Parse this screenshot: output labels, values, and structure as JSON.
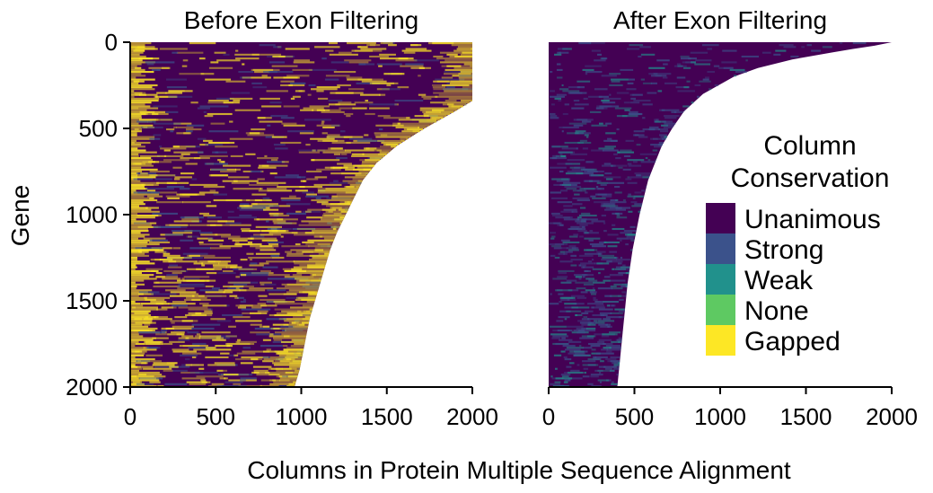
{
  "chart_data": {
    "type": "heatmap",
    "shared_xlabel": "Columns in Protein Multiple Sequence Alignment",
    "shared_ylabel": "Gene",
    "legend": {
      "title_lines": [
        "Column",
        "Conservation"
      ],
      "placement": "right-of-second-panel",
      "entries": [
        {
          "label": "Unanimous",
          "color": "#440154"
        },
        {
          "label": "Strong",
          "color": "#3b528b"
        },
        {
          "label": "Weak",
          "color": "#21918c"
        },
        {
          "label": "None",
          "color": "#5ec962"
        },
        {
          "label": "Gapped",
          "color": "#fde725"
        }
      ]
    },
    "panels": [
      {
        "title": "Before Exon Filtering",
        "xlim": [
          0,
          2000
        ],
        "ylim": [
          0,
          2000
        ],
        "x_ticks": [
          "0",
          "500",
          "1000",
          "1500",
          "2000"
        ],
        "y_ticks": [
          "0",
          "500",
          "1000",
          "1500",
          "2000"
        ],
        "y_tick_values": [
          0,
          500,
          1000,
          1500,
          2000
        ],
        "alignment_length_profile": {
          "gene": [
            0,
            100,
            200,
            300,
            340,
            400,
            500,
            600,
            700,
            800,
            900,
            1000,
            1100,
            1200,
            1300,
            1400,
            1500,
            1600,
            1700,
            1800,
            1900,
            2000
          ],
          "columns": [
            2000,
            2000,
            2000,
            2000,
            2000,
            1900,
            1720,
            1560,
            1440,
            1360,
            1310,
            1260,
            1210,
            1170,
            1140,
            1110,
            1080,
            1050,
            1030,
            1010,
            990,
            960
          ]
        },
        "dominant_classes": [
          "Unanimous",
          "Gapped"
        ]
      },
      {
        "title": "After Exon Filtering",
        "xlim": [
          0,
          2000
        ],
        "ylim": [
          0,
          2000
        ],
        "x_ticks": [
          "0",
          "500",
          "1000",
          "1500",
          "2000"
        ],
        "alignment_length_profile": {
          "gene": [
            0,
            20,
            40,
            60,
            100,
            150,
            200,
            300,
            400,
            500,
            600,
            800,
            1000,
            1200,
            1400,
            1600,
            1800,
            2000
          ],
          "columns": [
            2000,
            1900,
            1770,
            1650,
            1420,
            1220,
            1080,
            900,
            790,
            720,
            660,
            580,
            530,
            490,
            460,
            440,
            420,
            400
          ]
        },
        "dominant_classes": [
          "Unanimous",
          "Strong"
        ]
      }
    ]
  }
}
